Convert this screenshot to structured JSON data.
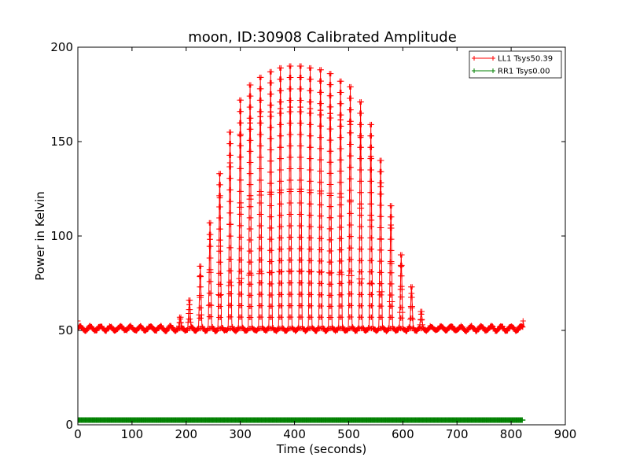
{
  "chart_data": {
    "type": "line",
    "title": "moon, ID:30908 Calibrated Amplitude",
    "xlabel": "Time (seconds)",
    "ylabel": "Power in Kelvin",
    "xlim": [
      0,
      900
    ],
    "ylim": [
      0,
      200
    ],
    "xticks": [
      "0",
      "100",
      "200",
      "300",
      "400",
      "500",
      "600",
      "700",
      "800",
      "900"
    ],
    "yticks": [
      "0",
      "50",
      "100",
      "150",
      "200"
    ],
    "grid": false,
    "legend_position": "top-right",
    "marker": "+",
    "series": [
      {
        "name": "LL1 Tsys50.39",
        "color": "#ff0000",
        "baseline": 51,
        "scan_period": 18.5,
        "x_start": 0,
        "x_end": 822,
        "peaks": [
          {
            "x": 189,
            "y": 57
          },
          {
            "x": 206,
            "y": 66
          },
          {
            "x": 226,
            "y": 84
          },
          {
            "x": 244,
            "y": 107
          },
          {
            "x": 262,
            "y": 133
          },
          {
            "x": 281,
            "y": 155
          },
          {
            "x": 300,
            "y": 172
          },
          {
            "x": 318,
            "y": 180
          },
          {
            "x": 337,
            "y": 184
          },
          {
            "x": 356,
            "y": 187
          },
          {
            "x": 374,
            "y": 189
          },
          {
            "x": 392,
            "y": 190
          },
          {
            "x": 411,
            "y": 190
          },
          {
            "x": 429,
            "y": 189
          },
          {
            "x": 448,
            "y": 188
          },
          {
            "x": 466,
            "y": 186
          },
          {
            "x": 485,
            "y": 182
          },
          {
            "x": 503,
            "y": 179
          },
          {
            "x": 522,
            "y": 171
          },
          {
            "x": 541,
            "y": 159
          },
          {
            "x": 559,
            "y": 140
          },
          {
            "x": 578,
            "y": 116
          },
          {
            "x": 597,
            "y": 90
          },
          {
            "x": 616,
            "y": 73
          },
          {
            "x": 634,
            "y": 60
          }
        ]
      },
      {
        "name": "RR1 Tsys0.00",
        "color": "#008000",
        "baseline": 2.5,
        "x_start": 0,
        "x_end": 822
      }
    ]
  }
}
